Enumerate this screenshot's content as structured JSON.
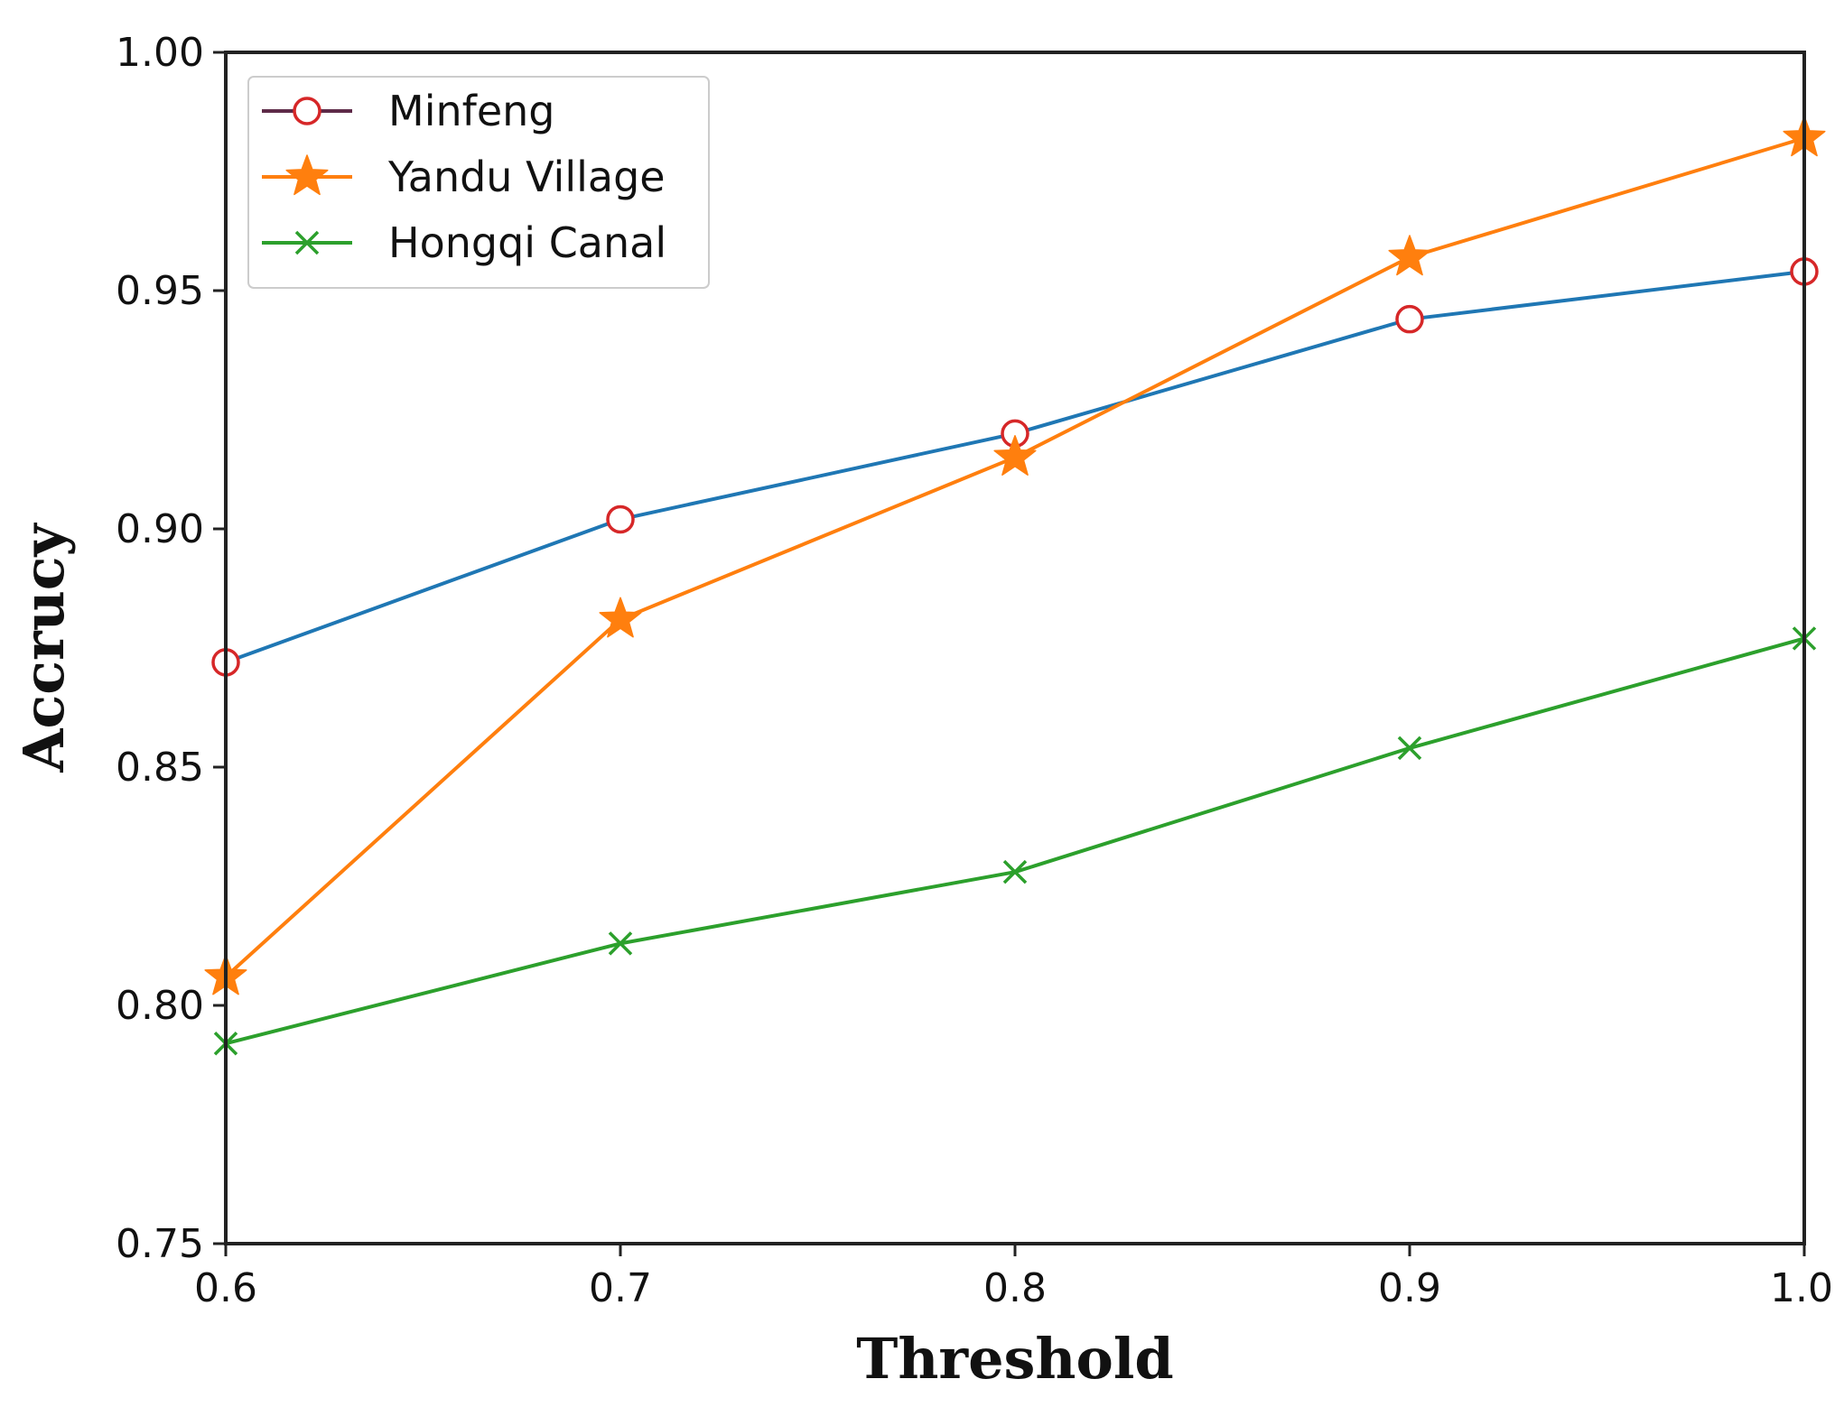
{
  "chart_data": {
    "type": "line",
    "title": "",
    "xlabel": "Threshold",
    "ylabel": "Accrucy",
    "x": [
      0.6,
      0.7,
      0.8,
      0.9,
      1.0
    ],
    "xlim": [
      0.6,
      1.0
    ],
    "ylim": [
      0.75,
      1.0
    ],
    "x_ticks": [
      "0.6",
      "0.7",
      "0.8",
      "0.9",
      "1.0"
    ],
    "y_ticks": [
      "0.75",
      "0.80",
      "0.85",
      "0.90",
      "0.95",
      "1.00"
    ],
    "grid": false,
    "legend_position": "top-left",
    "series": [
      {
        "name": "Minfeng",
        "values": [
          0.872,
          0.902,
          0.92,
          0.944,
          0.954
        ],
        "line_color": "#1f77b4",
        "legend_line_color": "#5e2a48",
        "marker": "circle",
        "marker_color": "#d62728"
      },
      {
        "name": "Yandu Village",
        "values": [
          0.806,
          0.881,
          0.915,
          0.957,
          0.982
        ],
        "line_color": "#ff7f0e",
        "legend_line_color": "#ff7f0e",
        "marker": "star",
        "marker_color": "#ff7f0e"
      },
      {
        "name": "Hongqi Canal",
        "values": [
          0.792,
          0.813,
          0.828,
          0.854,
          0.877
        ],
        "line_color": "#2ca02c",
        "legend_line_color": "#2ca02c",
        "marker": "x",
        "marker_color": "#2ca02c"
      }
    ]
  }
}
